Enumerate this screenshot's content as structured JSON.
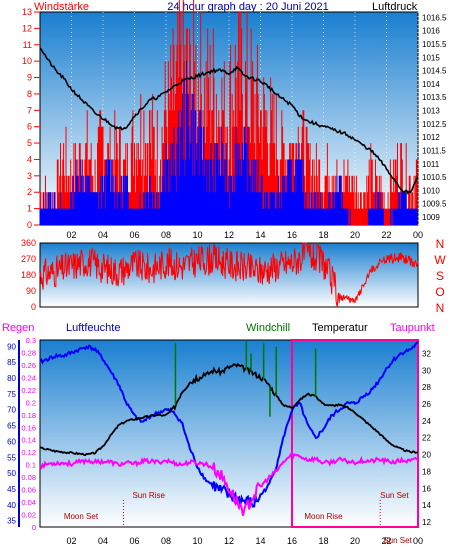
{
  "colors": {
    "windstarke": "#ff0000",
    "luftdruck": "#000000",
    "gust": "#0000ff",
    "direction": "#ff0000",
    "regen": "#ff00ff",
    "luftfeuchte": "#0000ff",
    "windchill": "#007700",
    "temperatur": "#000000",
    "taupunkt": "#ff00ff",
    "sky_top": "#1a7fd0",
    "sky_bottom": "#ffffff",
    "highlight": "#ff0099"
  },
  "chart_data": [
    {
      "type": "line",
      "id": "top",
      "title": "24 hour graph day : 20 Juni 2021",
      "left_label": "Windstärke",
      "right_label": "Luftdruck",
      "x_ticks": [
        "02",
        "04",
        "06",
        "08",
        "10",
        "12",
        "14",
        "16",
        "18",
        "20",
        "22",
        "00"
      ],
      "x_range": [
        0,
        24
      ],
      "y_left_ticks": [
        "0",
        "1",
        "2",
        "3",
        "4",
        "5",
        "6",
        "7",
        "8",
        "9",
        "10",
        "11",
        "12",
        "13"
      ],
      "y_left_range": [
        0,
        13
      ],
      "y_right_ticks": [
        "1009",
        "1009.5",
        "1010",
        "1010.5",
        "1011",
        "1011.5",
        "1012",
        "1012.5",
        "1013",
        "1013.5",
        "1014",
        "1014.5",
        "1015",
        "1015.5",
        "1016",
        "1016.5"
      ],
      "y_right_range": [
        1008.7,
        1016.7
      ],
      "series": [
        {
          "role": "pressure",
          "axis": "right",
          "x": [
            0,
            0.5,
            1,
            1.5,
            2,
            2.5,
            3,
            3.5,
            4,
            4.5,
            5,
            5.5,
            6,
            6.5,
            7,
            7.5,
            8,
            8.5,
            9,
            9.5,
            10,
            10.5,
            11,
            11.5,
            12,
            12.5,
            13,
            13.5,
            14,
            14.5,
            15,
            15.5,
            16,
            16.5,
            17,
            17.5,
            18,
            18.5,
            19,
            19.5,
            20,
            20.5,
            21,
            21.5,
            22,
            22.5,
            23,
            23.5,
            24
          ],
          "values": [
            1015.4,
            1014.9,
            1014.5,
            1014.2,
            1013.8,
            1013.5,
            1013.2,
            1012.9,
            1012.7,
            1012.5,
            1012.3,
            1012.4,
            1012.8,
            1013.1,
            1013.4,
            1013.5,
            1013.7,
            1013.9,
            1014.1,
            1014.2,
            1014.3,
            1014.4,
            1014.5,
            1014.5,
            1014.4,
            1014.6,
            1014.3,
            1014.2,
            1014.1,
            1013.9,
            1013.6,
            1013.4,
            1013.2,
            1012.8,
            1012.6,
            1012.5,
            1012.4,
            1012.3,
            1012.2,
            1012.1,
            1011.9,
            1011.7,
            1011.5,
            1011.2,
            1010.8,
            1010.4,
            1010,
            1009.9,
            1010.5
          ]
        },
        {
          "role": "wind",
          "axis": "left",
          "x": [
            0,
            0.5,
            1,
            1.5,
            2,
            2.5,
            3,
            3.5,
            4,
            4.5,
            5,
            5.5,
            6,
            6.5,
            7,
            7.5,
            8,
            8.5,
            9,
            9.5,
            10,
            10.5,
            11,
            11.5,
            12,
            12.5,
            13,
            13.5,
            14,
            14.5,
            15,
            15.5,
            16,
            16.5,
            17,
            17.5,
            18,
            18.5,
            19,
            19.5,
            20,
            20.5,
            21,
            21.5,
            22,
            22.5,
            23,
            23.5,
            24
          ],
          "values": [
            1,
            2,
            2,
            1,
            2,
            4,
            3,
            2,
            3,
            4,
            2,
            3,
            1,
            2,
            3,
            2,
            4,
            5,
            7,
            9,
            6,
            5,
            4,
            5,
            3,
            6,
            5,
            4,
            3,
            2,
            2,
            3,
            4,
            4,
            2,
            2,
            1,
            2,
            3,
            1,
            0,
            0,
            1,
            2,
            0,
            1,
            2,
            1,
            1
          ]
        },
        {
          "role": "gust",
          "axis": "left",
          "x": [
            0,
            0.5,
            1,
            1.5,
            2,
            2.5,
            3,
            3.5,
            4,
            4.5,
            5,
            5.5,
            6,
            6.5,
            7,
            7.5,
            8,
            8.5,
            9,
            9.5,
            10,
            10.5,
            11,
            11.5,
            12,
            12.5,
            13,
            13.5,
            14,
            14.5,
            15,
            15.5,
            16,
            16.5,
            17,
            17.5,
            18,
            18.5,
            19,
            19.5,
            20,
            20.5,
            21,
            21.5,
            22,
            22.5,
            23,
            23.5,
            24
          ],
          "values": [
            3,
            2,
            3,
            5,
            4,
            5,
            6,
            4,
            7,
            5,
            6,
            4,
            7,
            8,
            7,
            6,
            9,
            10,
            13,
            11,
            12,
            10,
            11,
            9,
            10,
            12,
            11,
            10,
            9,
            8,
            7,
            6,
            6,
            7,
            5,
            4,
            4,
            5,
            3,
            4,
            3,
            2,
            4,
            3,
            2,
            4,
            5,
            3,
            4
          ]
        }
      ]
    },
    {
      "type": "line",
      "id": "direction",
      "y_ticks": [
        "0",
        "90",
        "180",
        "270",
        "360"
      ],
      "y_range": [
        0,
        360
      ],
      "compass_labels": [
        "N",
        "W",
        "S",
        "O",
        "N"
      ],
      "series": [
        {
          "role": "direction",
          "x": [
            0,
            1,
            2,
            3,
            4,
            5,
            6,
            7,
            8,
            9,
            10,
            11,
            12,
            13,
            14,
            15,
            16,
            17,
            18,
            19,
            20,
            21,
            22,
            23,
            24
          ],
          "values": [
            180,
            200,
            230,
            260,
            220,
            200,
            240,
            210,
            250,
            230,
            260,
            270,
            240,
            220,
            200,
            230,
            250,
            300,
            250,
            60,
            30,
            200,
            270,
            280,
            240
          ]
        }
      ]
    },
    {
      "type": "line",
      "id": "bottom",
      "left_outer_label": "Regen",
      "left_inner_label": "Luftfeuchte",
      "mid_label": "Windchill",
      "mid2_label": "Temperatur",
      "right_label": "Taupunkt",
      "regen_ticks": [
        "0",
        "0.02",
        "0.04",
        "0.06",
        "0.08",
        "0.1",
        "0.12",
        "0.14",
        "0.16",
        "0.18",
        "0.2",
        "0.22",
        "0.24",
        "0.26",
        "0.28",
        "0.3"
      ],
      "regen_range": [
        0,
        0.3
      ],
      "humidity_ticks": [
        "35",
        "40",
        "45",
        "50",
        "55",
        "60",
        "65",
        "70",
        "75",
        "80",
        "85",
        "90"
      ],
      "humidity_range": [
        33,
        92
      ],
      "temp_ticks": [
        "12",
        "14",
        "16",
        "18",
        "20",
        "22",
        "24",
        "26",
        "28",
        "30",
        "32"
      ],
      "temp_range": [
        11.4,
        33.6
      ],
      "x_ticks": [
        "02",
        "04",
        "06",
        "08",
        "10",
        "12",
        "14",
        "16",
        "18",
        "20",
        "22",
        "00"
      ],
      "event_labels": [
        "Moon Set",
        "Sun Rise",
        "Moon Rise",
        "Sun Set",
        "Sun Set"
      ],
      "series": [
        {
          "role": "humidity",
          "axis": "humidity",
          "x": [
            0,
            0.5,
            1,
            1.5,
            2,
            2.5,
            3,
            3.5,
            4,
            4.5,
            5,
            5.5,
            6,
            6.5,
            7,
            7.5,
            8,
            8.5,
            9,
            9.5,
            10,
            10.5,
            11,
            11.5,
            12,
            12.5,
            13,
            13.5,
            14,
            14.5,
            15,
            15.5,
            16,
            16.5,
            17,
            17.5,
            18,
            18.5,
            19,
            19.5,
            20,
            20.5,
            21,
            21.5,
            22,
            22.5,
            23,
            23.5,
            24
          ],
          "values": [
            85,
            86,
            87,
            87,
            88,
            89,
            90,
            89,
            86,
            82,
            78,
            72,
            68,
            66,
            68,
            69,
            70,
            69,
            66,
            58,
            52,
            48,
            46,
            44,
            43,
            42,
            41,
            40,
            43,
            46,
            52,
            62,
            70,
            72,
            65,
            61,
            64,
            68,
            70,
            72,
            72,
            74,
            76,
            79,
            83,
            86,
            88,
            89,
            91
          ]
        },
        {
          "role": "temperature",
          "axis": "temp",
          "x": [
            0,
            0.5,
            1,
            1.5,
            2,
            2.5,
            3,
            3.5,
            4,
            4.5,
            5,
            5.5,
            6,
            6.5,
            7,
            7.5,
            8,
            8.5,
            9,
            9.5,
            10,
            10.5,
            11,
            11.5,
            12,
            12.5,
            13,
            13.5,
            14,
            14.5,
            15,
            15.5,
            16,
            16.5,
            17,
            17.5,
            18,
            18.5,
            19,
            19.5,
            20,
            20.5,
            21,
            21.5,
            22,
            22.5,
            23,
            23.5,
            24
          ],
          "values": [
            20.8,
            20.6,
            20.4,
            20.3,
            20.2,
            20.1,
            20,
            20.2,
            21,
            22.3,
            23.5,
            24,
            24.2,
            24.4,
            24.6,
            24.7,
            24.6,
            25.5,
            27.5,
            28.6,
            29,
            29.4,
            30,
            29.8,
            30.4,
            30.6,
            30.2,
            29.7,
            29.2,
            28.4,
            27,
            25.8,
            25.6,
            26.5,
            27.2,
            26.9,
            26,
            25.8,
            25.9,
            25.6,
            25,
            24.2,
            23.4,
            22.6,
            21.7,
            21,
            20.6,
            20.3,
            20.3
          ]
        },
        {
          "role": "dewpoint",
          "axis": "temp",
          "x": [
            0,
            0.5,
            1,
            1.5,
            2,
            2.5,
            3,
            3.5,
            4,
            4.5,
            5,
            5.5,
            6,
            6.5,
            7,
            7.5,
            8,
            8.5,
            9,
            9.5,
            10,
            10.5,
            11,
            11.5,
            12,
            12.5,
            13,
            13.5,
            14,
            14.5,
            15,
            15.5,
            16,
            16.5,
            17,
            17.5,
            18,
            18.5,
            19,
            19.5,
            20,
            20.5,
            21,
            21.5,
            22,
            22.5,
            23,
            23.5,
            24
          ],
          "values": [
            18.6,
            18.9,
            19,
            19,
            18.9,
            19.1,
            19.3,
            19.1,
            19.2,
            19.1,
            18.8,
            19,
            18.9,
            19.2,
            19.2,
            19.1,
            19.3,
            19,
            18.8,
            19.1,
            19,
            18.9,
            18.4,
            17.5,
            16,
            14.4,
            13.2,
            15,
            16.2,
            17.2,
            18,
            19.2,
            20,
            19.8,
            19.4,
            19.5,
            19,
            19.1,
            19.4,
            19.2,
            19.1,
            19.3,
            19.2,
            19.4,
            19.2,
            19.1,
            19.3,
            19.2,
            19.5
          ]
        },
        {
          "role": "windchill",
          "axis": "temp",
          "x": [
            8.6,
            13.1,
            13.4,
            14.2,
            14.6,
            15,
            17.5
          ],
          "values": [
            33.2,
            33.4,
            32,
            33.2,
            24.5,
            32.8,
            32.6
          ]
        }
      ]
    }
  ]
}
